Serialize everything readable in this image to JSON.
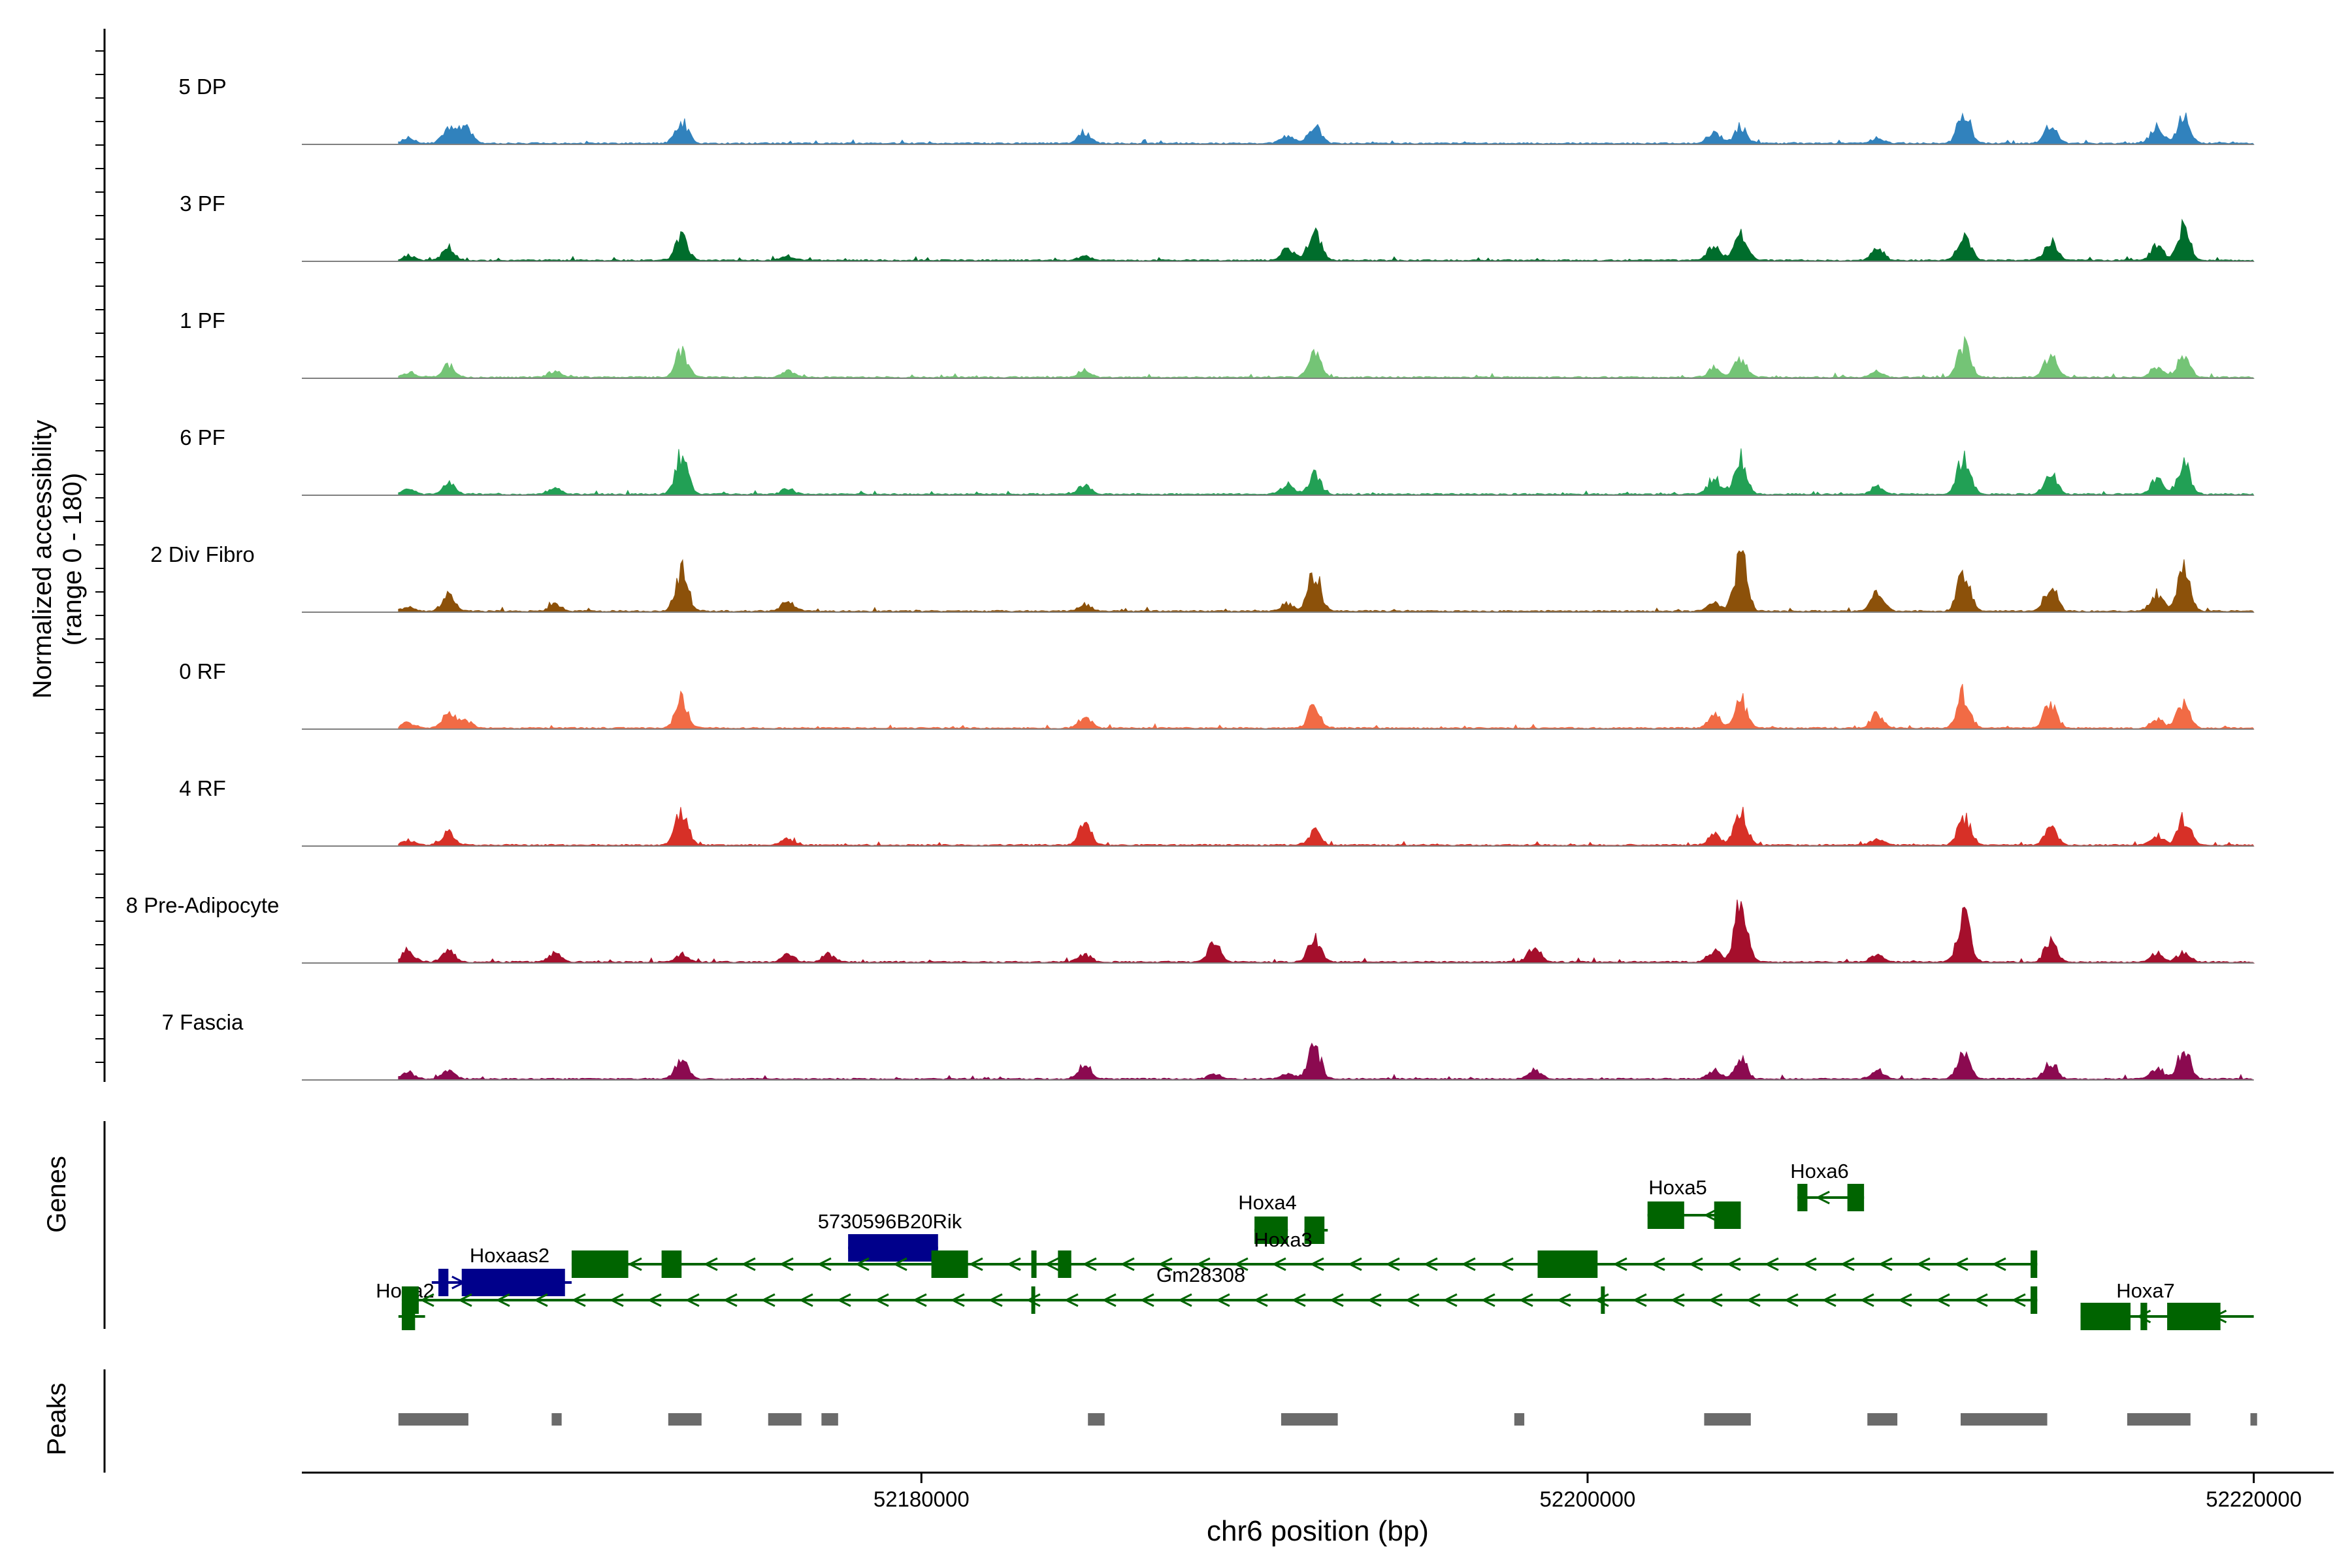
{
  "chart_data": {
    "type": "area",
    "title": "",
    "y_axis_title_line1": "Normalized accessibility",
    "y_axis_title_line2": "(range 0 - 180)",
    "ylim": [
      0,
      180
    ],
    "xlabel": "chr6 position (bp)",
    "xlim": [
      52161400,
      52222400
    ],
    "x_ticks": [
      {
        "value": 52180000,
        "label": "52180000"
      },
      {
        "value": 52200000,
        "label": "52200000"
      },
      {
        "value": 52220000,
        "label": "52220000"
      }
    ],
    "data_start": 52164300,
    "data_end": 52220000,
    "tracks": [
      {
        "name": "5 DP",
        "color": "#3182BD"
      },
      {
        "name": "3 PF",
        "color": "#006D2C"
      },
      {
        "name": "1 PF",
        "color": "#74C476"
      },
      {
        "name": "6 PF",
        "color": "#22A055"
      },
      {
        "name": "2 Div Fibro",
        "color": "#8C510A"
      },
      {
        "name": "0 RF",
        "color": "#F16B45"
      },
      {
        "name": "4 RF",
        "color": "#D73027"
      },
      {
        "name": "8 Pre-Adipocyte",
        "color": "#A50F2C"
      },
      {
        "name": "7 Fascia",
        "color": "#8B0A50"
      }
    ],
    "peak_centers": [
      52164600,
      52165800,
      52166300,
      52169000,
      52172800,
      52176000,
      52177200,
      52184900,
      52188800,
      52191000,
      52191800,
      52198400,
      52203800,
      52204600,
      52208700,
      52211300,
      52213900,
      52217100,
      52217900
    ],
    "peaks_by_track": [
      [
        [
          52164600,
          9
        ],
        [
          52165800,
          28
        ],
        [
          52166300,
          30
        ],
        [
          52172800,
          40
        ],
        [
          52184900,
          18
        ],
        [
          52191000,
          14
        ],
        [
          52191800,
          32
        ],
        [
          52203800,
          20
        ],
        [
          52204600,
          30
        ],
        [
          52208700,
          10
        ],
        [
          52211300,
          56
        ],
        [
          52213900,
          34
        ],
        [
          52217100,
          30
        ],
        [
          52217900,
          48
        ]
      ],
      [
        [
          52164600,
          8
        ],
        [
          52165800,
          22
        ],
        [
          52172800,
          42
        ],
        [
          52176000,
          8
        ],
        [
          52184900,
          8
        ],
        [
          52191000,
          22
        ],
        [
          52191800,
          52
        ],
        [
          52203800,
          26
        ],
        [
          52204600,
          46
        ],
        [
          52208700,
          22
        ],
        [
          52211300,
          48
        ],
        [
          52213900,
          34
        ],
        [
          52217100,
          26
        ],
        [
          52217900,
          60
        ]
      ],
      [
        [
          52164600,
          8
        ],
        [
          52165800,
          22
        ],
        [
          52169000,
          12
        ],
        [
          52172800,
          46
        ],
        [
          52176000,
          10
        ],
        [
          52184900,
          12
        ],
        [
          52191800,
          40
        ],
        [
          52203800,
          16
        ],
        [
          52204600,
          34
        ],
        [
          52208700,
          10
        ],
        [
          52211300,
          56
        ],
        [
          52213900,
          40
        ],
        [
          52217100,
          18
        ],
        [
          52217900,
          40
        ]
      ],
      [
        [
          52164600,
          8
        ],
        [
          52165800,
          20
        ],
        [
          52169000,
          10
        ],
        [
          52172800,
          70
        ],
        [
          52176000,
          10
        ],
        [
          52184900,
          16
        ],
        [
          52191000,
          18
        ],
        [
          52191800,
          34
        ],
        [
          52203800,
          28
        ],
        [
          52204600,
          62
        ],
        [
          52208700,
          14
        ],
        [
          52211300,
          70
        ],
        [
          52213900,
          44
        ],
        [
          52217100,
          26
        ],
        [
          52217900,
          54
        ]
      ],
      [
        [
          52164600,
          8
        ],
        [
          52165800,
          28
        ],
        [
          52169000,
          12
        ],
        [
          52172800,
          75
        ],
        [
          52176000,
          18
        ],
        [
          52184900,
          12
        ],
        [
          52191000,
          14
        ],
        [
          52191800,
          70
        ],
        [
          52203800,
          16
        ],
        [
          52204600,
          102
        ],
        [
          52208700,
          34
        ],
        [
          52211300,
          75
        ],
        [
          52213900,
          46
        ],
        [
          52217100,
          34
        ],
        [
          52217900,
          76
        ]
      ],
      [
        [
          52164600,
          10
        ],
        [
          52165800,
          26
        ],
        [
          52166300,
          16
        ],
        [
          52172800,
          52
        ],
        [
          52184900,
          22
        ],
        [
          52191800,
          40
        ],
        [
          52203800,
          22
        ],
        [
          52204600,
          52
        ],
        [
          52208700,
          26
        ],
        [
          52211300,
          62
        ],
        [
          52213900,
          48
        ],
        [
          52217100,
          18
        ],
        [
          52217900,
          48
        ]
      ],
      [
        [
          52164600,
          8
        ],
        [
          52165800,
          24
        ],
        [
          52172800,
          60
        ],
        [
          52176000,
          10
        ],
        [
          52184900,
          38
        ],
        [
          52191800,
          24
        ],
        [
          52203800,
          20
        ],
        [
          52204600,
          58
        ],
        [
          52208700,
          10
        ],
        [
          52211300,
          50
        ],
        [
          52213900,
          30
        ],
        [
          52217100,
          14
        ],
        [
          52217900,
          48
        ]
      ],
      [
        [
          52164600,
          18
        ],
        [
          52165800,
          20
        ],
        [
          52169000,
          16
        ],
        [
          52172800,
          12
        ],
        [
          52176000,
          14
        ],
        [
          52177200,
          14
        ],
        [
          52184900,
          14
        ],
        [
          52188800,
          36
        ],
        [
          52191800,
          42
        ],
        [
          52198400,
          28
        ],
        [
          52203800,
          22
        ],
        [
          52204600,
          110
        ],
        [
          52208700,
          14
        ],
        [
          52211300,
          90
        ],
        [
          52213900,
          36
        ],
        [
          52217100,
          16
        ],
        [
          52217900,
          16
        ]
      ],
      [
        [
          52164600,
          12
        ],
        [
          52165800,
          14
        ],
        [
          52172800,
          40
        ],
        [
          52184900,
          28
        ],
        [
          52188800,
          10
        ],
        [
          52191000,
          12
        ],
        [
          52191800,
          58
        ],
        [
          52198400,
          18
        ],
        [
          52203800,
          16
        ],
        [
          52204600,
          36
        ],
        [
          52208700,
          16
        ],
        [
          52211300,
          48
        ],
        [
          52213900,
          28
        ],
        [
          52217100,
          18
        ],
        [
          52217900,
          54
        ]
      ]
    ],
    "peaks_track": [
      [
        52164300,
        52166400
      ],
      [
        52168900,
        52169200
      ],
      [
        52172400,
        52173400
      ],
      [
        52175400,
        52176400
      ],
      [
        52177000,
        52177500
      ],
      [
        52185000,
        52185500
      ],
      [
        52190800,
        52192500
      ],
      [
        52197800,
        52198100
      ],
      [
        52203500,
        52204900
      ],
      [
        52208400,
        52209300
      ],
      [
        52211200,
        52213800
      ],
      [
        52216200,
        52218100
      ],
      [
        52219900,
        52220100
      ]
    ],
    "genes": [
      {
        "name": "Hoxa2",
        "strand": "-",
        "color": "#006400",
        "start": 52164300,
        "end": 52165100,
        "exons": [
          [
            52164400,
            52164800
          ]
        ]
      },
      {
        "name": "Hoxaas2",
        "strand": "+",
        "color": "#00008B",
        "start": 52165300,
        "end": 52169500,
        "exons": [
          [
            52165500,
            52165800
          ],
          [
            52166200,
            52169300
          ]
        ]
      },
      {
        "name": "5730596B20Rik",
        "strand": "+",
        "color": "#00008B",
        "start": 52177800,
        "end": 52180500,
        "exons": [
          [
            52177800,
            52180500
          ]
        ]
      },
      {
        "name": "Hoxa4",
        "strand": "-",
        "color": "#006400",
        "start": 52190000,
        "end": 52191000,
        "exons": [
          [
            52190000,
            52191000
          ]
        ]
      },
      {
        "name": "Hoxa3",
        "strand": "-",
        "color": "#006400",
        "start": 52191500,
        "end": 52192200,
        "exons": [
          [
            52191500,
            52192100
          ]
        ]
      },
      {
        "name": "Gm28308",
        "strand": "-",
        "color": "#006400",
        "start": 52169500,
        "end": 52213500,
        "exons": [
          [
            52169500,
            52171200
          ],
          [
            52172200,
            52172800
          ],
          [
            52180300,
            52181400
          ],
          [
            52183300,
            52183400
          ],
          [
            52184100,
            52184500
          ],
          [
            52198500,
            52200300
          ],
          [
            52213300,
            52213500
          ]
        ]
      },
      {
        "name": "Hoxa5",
        "strand": "-",
        "color": "#006400",
        "start": 52201800,
        "end": 52204600,
        "exons": [
          [
            52201800,
            52202900
          ],
          [
            52203800,
            52204600
          ]
        ]
      },
      {
        "name": "Hoxa6",
        "strand": "-",
        "color": "#006400",
        "start": 52206300,
        "end": 52208300,
        "exons": [
          [
            52206300,
            52206600
          ],
          [
            52207800,
            52208300
          ]
        ]
      },
      {
        "name": "Hoxa7",
        "strand": "-",
        "color": "#006400",
        "start": 52214800,
        "end": 52220000,
        "exons": [
          [
            52214800,
            52216300
          ],
          [
            52216600,
            52216800
          ],
          [
            52217400,
            52219000
          ]
        ]
      }
    ],
    "genes_panel_label": "Genes",
    "peaks_panel_label": "Peaks"
  }
}
